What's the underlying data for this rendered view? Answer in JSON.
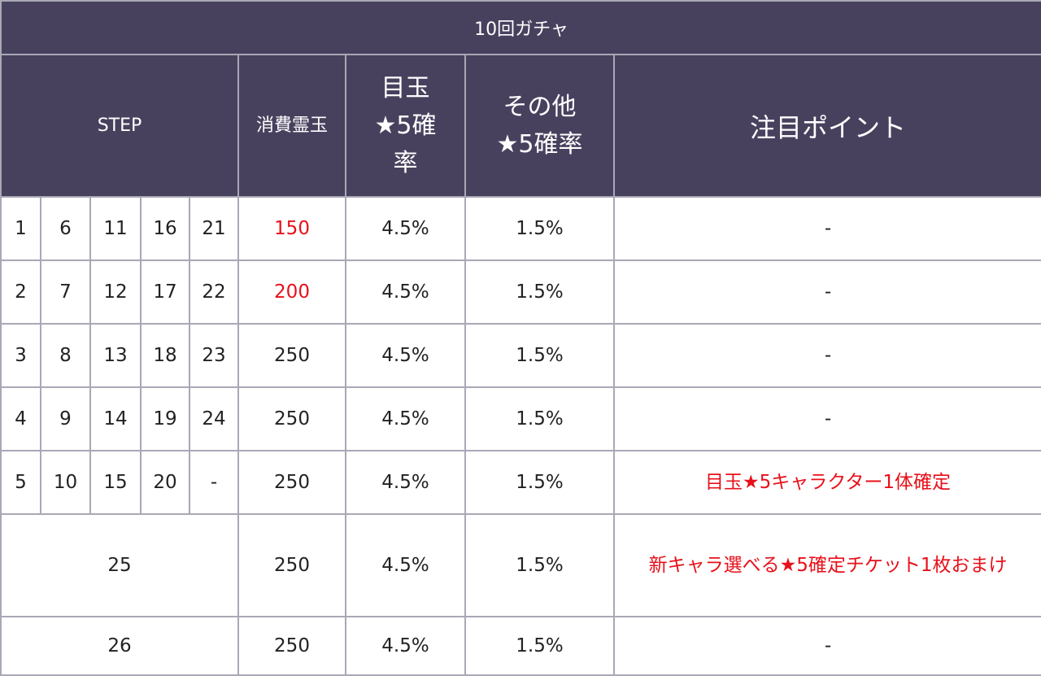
{
  "title": "10回ガチャ",
  "headers": {
    "step": "STEP",
    "cost": "消費霊玉",
    "featured_rate": "目玉★5確率",
    "other_rate": "その他★5確率",
    "point": "注目ポイント"
  },
  "rows": [
    {
      "steps": [
        "1",
        "6",
        "11",
        "16",
        "21"
      ],
      "cost": "150",
      "featured": "4.5%",
      "other": "1.5%",
      "point": "-"
    },
    {
      "steps": [
        "2",
        "7",
        "12",
        "17",
        "22"
      ],
      "cost": "200",
      "featured": "4.5%",
      "other": "1.5%",
      "point": "-"
    },
    {
      "steps": [
        "3",
        "8",
        "13",
        "18",
        "23"
      ],
      "cost": "250",
      "featured": "4.5%",
      "other": "1.5%",
      "point": "-"
    },
    {
      "steps": [
        "4",
        "9",
        "14",
        "19",
        "24"
      ],
      "cost": "250",
      "featured": "4.5%",
      "other": "1.5%",
      "point": "-"
    },
    {
      "steps": [
        "5",
        "10",
        "15",
        "20",
        "-"
      ],
      "cost": "250",
      "featured": "4.5%",
      "other": "1.5%",
      "point": "目玉★5キャラクター1体確定"
    },
    {
      "step": "25",
      "cost": "250",
      "featured": "4.5%",
      "other": "1.5%",
      "point": "新キャラ選べる★5確定チケット1枚おまけ"
    },
    {
      "step": "26",
      "cost": "250",
      "featured": "4.5%",
      "other": "1.5%",
      "point": "-"
    }
  ],
  "colors": {
    "header_bg": "#48415e",
    "header_text": "#ffffff",
    "highlight_red": "#e8101a",
    "grid": "#a9a8b6"
  }
}
